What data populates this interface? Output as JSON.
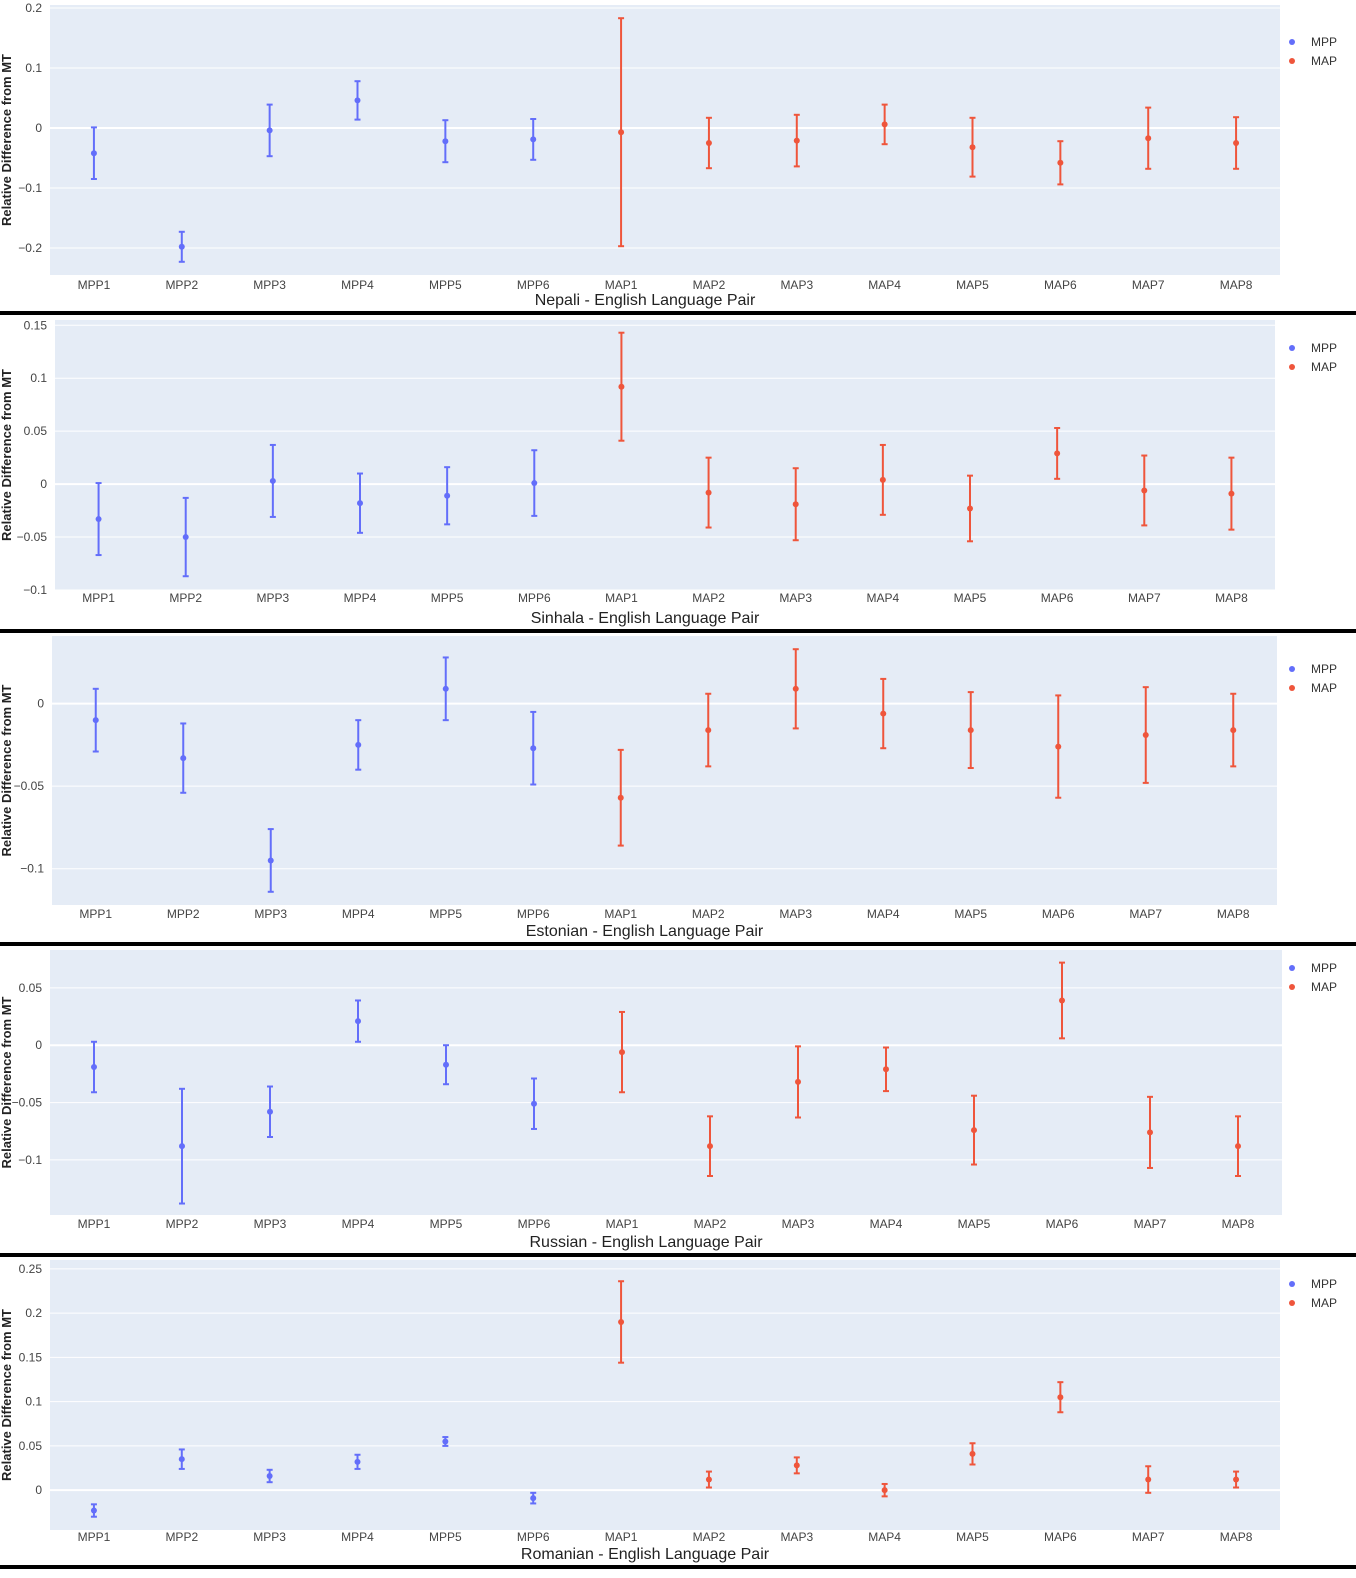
{
  "colors": {
    "MPP": "#636efa",
    "MAP": "#ef553b",
    "plot_bg": "#e5ecf6",
    "grid": "#ffffff",
    "separator": "#000000"
  },
  "chart_data": [
    {
      "type": "scatter",
      "xlabel": "Nepali - English Language Pair",
      "ylabel": "Relative Difference from MT",
      "ylim": [
        -0.245,
        0.205
      ],
      "yticks": [
        -0.2,
        -0.1,
        0,
        0.1,
        0.2
      ],
      "ytick_labels": [
        "−0.2",
        "−0.1",
        "0",
        "0.1",
        "0.2"
      ],
      "categories": [
        "MPP1",
        "MPP2",
        "MPP3",
        "MPP4",
        "MPP5",
        "MPP6",
        "MAP1",
        "MAP2",
        "MAP3",
        "MAP4",
        "MAP5",
        "MAP6",
        "MAP7",
        "MAP8"
      ],
      "legend": [
        "MPP",
        "MAP"
      ],
      "legend_position": "top-right",
      "series": [
        {
          "name": "MPP",
          "x": [
            "MPP1",
            "MPP2",
            "MPP3",
            "MPP4",
            "MPP5",
            "MPP6"
          ],
          "y": [
            -0.042,
            -0.198,
            -0.004,
            0.046,
            -0.022,
            -0.019
          ],
          "error": [
            0.043,
            0.025,
            0.043,
            0.032,
            0.035,
            0.034
          ]
        },
        {
          "name": "MAP",
          "x": [
            "MAP1",
            "MAP2",
            "MAP3",
            "MAP4",
            "MAP5",
            "MAP6",
            "MAP7",
            "MAP8"
          ],
          "y": [
            -0.007,
            -0.025,
            -0.021,
            0.006,
            -0.032,
            -0.058,
            -0.017,
            -0.025
          ],
          "error": [
            0.19,
            0.042,
            0.043,
            0.033,
            0.049,
            0.036,
            0.051,
            0.043
          ]
        }
      ]
    },
    {
      "type": "scatter",
      "xlabel": "Sinhala - English Language Pair",
      "ylabel": "Relative Difference from MT",
      "ylim": [
        -0.1,
        0.155
      ],
      "yticks": [
        -0.1,
        -0.05,
        0,
        0.05,
        0.1,
        0.15
      ],
      "ytick_labels": [
        "−0.1",
        "−0.05",
        "0",
        "0.05",
        "0.1",
        "0.15"
      ],
      "categories": [
        "MPP1",
        "MPP2",
        "MPP3",
        "MPP4",
        "MPP5",
        "MPP6",
        "MAP1",
        "MAP2",
        "MAP3",
        "MAP4",
        "MAP5",
        "MAP6",
        "MAP7",
        "MAP8"
      ],
      "legend": [
        "MPP",
        "MAP"
      ],
      "legend_position": "top-right",
      "series": [
        {
          "name": "MPP",
          "x": [
            "MPP1",
            "MPP2",
            "MPP3",
            "MPP4",
            "MPP5",
            "MPP6"
          ],
          "y": [
            -0.033,
            -0.05,
            0.003,
            -0.018,
            -0.011,
            0.001
          ],
          "error": [
            0.034,
            0.037,
            0.034,
            0.028,
            0.027,
            0.031
          ]
        },
        {
          "name": "MAP",
          "x": [
            "MAP1",
            "MAP2",
            "MAP3",
            "MAP4",
            "MAP5",
            "MAP6",
            "MAP7",
            "MAP8"
          ],
          "y": [
            0.092,
            -0.008,
            -0.019,
            0.004,
            -0.023,
            0.029,
            -0.006,
            -0.009
          ],
          "error": [
            0.051,
            0.033,
            0.034,
            0.033,
            0.031,
            0.024,
            0.033,
            0.034
          ]
        }
      ]
    },
    {
      "type": "scatter",
      "xlabel": "Estonian - English Language Pair",
      "ylabel": "Relative Difference from MT",
      "ylim": [
        -0.122,
        0.041
      ],
      "yticks": [
        -0.1,
        -0.05,
        0
      ],
      "ytick_labels": [
        "−0.1",
        "−0.05",
        "0"
      ],
      "categories": [
        "MPP1",
        "MPP2",
        "MPP3",
        "MPP4",
        "MPP5",
        "MPP6",
        "MAP1",
        "MAP2",
        "MAP3",
        "MAP4",
        "MAP5",
        "MAP6",
        "MAP7",
        "MAP8"
      ],
      "legend": [
        "MPP",
        "MAP"
      ],
      "legend_position": "top-right",
      "series": [
        {
          "name": "MPP",
          "x": [
            "MPP1",
            "MPP2",
            "MPP3",
            "MPP4",
            "MPP5",
            "MPP6"
          ],
          "y": [
            -0.01,
            -0.033,
            -0.095,
            -0.025,
            0.009,
            -0.027
          ],
          "error": [
            0.019,
            0.021,
            0.019,
            0.015,
            0.019,
            0.022
          ]
        },
        {
          "name": "MAP",
          "x": [
            "MAP1",
            "MAP2",
            "MAP3",
            "MAP4",
            "MAP5",
            "MAP6",
            "MAP7",
            "MAP8"
          ],
          "y": [
            -0.057,
            -0.016,
            0.009,
            -0.006,
            -0.016,
            -0.026,
            -0.019,
            -0.016
          ],
          "error": [
            0.029,
            0.022,
            0.024,
            0.021,
            0.023,
            0.031,
            0.029,
            0.022
          ]
        }
      ]
    },
    {
      "type": "scatter",
      "xlabel": "Russian - English Language Pair",
      "ylabel": "Relative Difference from MT",
      "ylim": [
        -0.148,
        0.083
      ],
      "yticks": [
        -0.1,
        -0.05,
        0,
        0.05
      ],
      "ytick_labels": [
        "−0.1",
        "−0.05",
        "0",
        "0.05"
      ],
      "categories": [
        "MPP1",
        "MPP2",
        "MPP3",
        "MPP4",
        "MPP5",
        "MPP6",
        "MAP1",
        "MAP2",
        "MAP3",
        "MAP4",
        "MAP5",
        "MAP6",
        "MAP7",
        "MAP8"
      ],
      "legend": [
        "MPP",
        "MAP"
      ],
      "legend_position": "top-right",
      "series": [
        {
          "name": "MPP",
          "x": [
            "MPP1",
            "MPP2",
            "MPP3",
            "MPP4",
            "MPP5",
            "MPP6"
          ],
          "y": [
            -0.019,
            -0.088,
            -0.058,
            0.021,
            -0.017,
            -0.051
          ],
          "error": [
            0.022,
            0.05,
            0.022,
            0.018,
            0.017,
            0.022
          ]
        },
        {
          "name": "MAP",
          "x": [
            "MAP1",
            "MAP2",
            "MAP3",
            "MAP4",
            "MAP5",
            "MAP6",
            "MAP7",
            "MAP8"
          ],
          "y": [
            -0.006,
            -0.088,
            -0.032,
            -0.021,
            -0.074,
            0.039,
            -0.076,
            -0.088
          ],
          "error": [
            0.035,
            0.026,
            0.031,
            0.019,
            0.03,
            0.033,
            0.031,
            0.026
          ]
        }
      ]
    },
    {
      "type": "scatter",
      "xlabel": "Romanian - English Language Pair",
      "ylabel": "Relative Difference from MT",
      "ylim": [
        -0.045,
        0.26
      ],
      "yticks": [
        0,
        0.05,
        0.1,
        0.15,
        0.2,
        0.25
      ],
      "ytick_labels": [
        "0",
        "0.05",
        "0.1",
        "0.15",
        "0.2",
        "0.25"
      ],
      "categories": [
        "MPP1",
        "MPP2",
        "MPP3",
        "MPP4",
        "MPP5",
        "MPP6",
        "MAP1",
        "MAP2",
        "MAP3",
        "MAP4",
        "MAP5",
        "MAP6",
        "MAP7",
        "MAP8"
      ],
      "legend": [
        "MPP",
        "MAP"
      ],
      "legend_position": "top-right",
      "series": [
        {
          "name": "MPP",
          "x": [
            "MPP1",
            "MPP2",
            "MPP3",
            "MPP4",
            "MPP5",
            "MPP6"
          ],
          "y": [
            -0.023,
            0.035,
            0.016,
            0.032,
            0.055,
            -0.009
          ],
          "error": [
            0.007,
            0.011,
            0.007,
            0.008,
            0.005,
            0.006
          ]
        },
        {
          "name": "MAP",
          "x": [
            "MAP1",
            "MAP2",
            "MAP3",
            "MAP4",
            "MAP5",
            "MAP6",
            "MAP7",
            "MAP8"
          ],
          "y": [
            0.19,
            0.012,
            0.028,
            0.0,
            0.041,
            0.105,
            0.012,
            0.012
          ],
          "error": [
            0.046,
            0.009,
            0.009,
            0.007,
            0.012,
            0.017,
            0.015,
            0.009
          ]
        }
      ]
    }
  ]
}
